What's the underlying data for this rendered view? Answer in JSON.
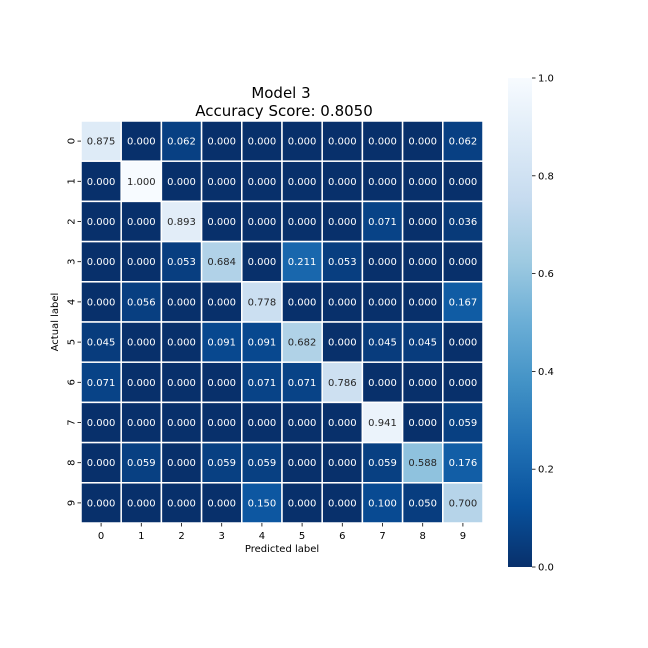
{
  "chart_data": {
    "type": "heatmap",
    "title": "Model 3",
    "subtitle": "Accuracy Score: 0.8050",
    "xlabel": "Predicted label",
    "ylabel": "Actual label",
    "x_ticks": [
      "0",
      "1",
      "2",
      "3",
      "4",
      "5",
      "6",
      "7",
      "8",
      "9"
    ],
    "y_ticks": [
      "0",
      "1",
      "2",
      "3",
      "4",
      "5",
      "6",
      "7",
      "8",
      "9"
    ],
    "values": [
      [
        0.875,
        0.0,
        0.062,
        0.0,
        0.0,
        0.0,
        0.0,
        0.0,
        0.0,
        0.062
      ],
      [
        0.0,
        1.0,
        0.0,
        0.0,
        0.0,
        0.0,
        0.0,
        0.0,
        0.0,
        0.0
      ],
      [
        0.0,
        0.0,
        0.893,
        0.0,
        0.0,
        0.0,
        0.0,
        0.071,
        0.0,
        0.036
      ],
      [
        0.0,
        0.0,
        0.053,
        0.684,
        0.0,
        0.211,
        0.053,
        0.0,
        0.0,
        0.0
      ],
      [
        0.0,
        0.056,
        0.0,
        0.0,
        0.778,
        0.0,
        0.0,
        0.0,
        0.0,
        0.167
      ],
      [
        0.045,
        0.0,
        0.0,
        0.091,
        0.091,
        0.682,
        0.0,
        0.045,
        0.045,
        0.0
      ],
      [
        0.071,
        0.0,
        0.0,
        0.0,
        0.071,
        0.071,
        0.786,
        0.0,
        0.0,
        0.0
      ],
      [
        0.0,
        0.0,
        0.0,
        0.0,
        0.0,
        0.0,
        0.0,
        0.941,
        0.0,
        0.059
      ],
      [
        0.0,
        0.059,
        0.0,
        0.059,
        0.059,
        0.0,
        0.0,
        0.059,
        0.588,
        0.176
      ],
      [
        0.0,
        0.0,
        0.0,
        0.0,
        0.15,
        0.0,
        0.0,
        0.1,
        0.05,
        0.7
      ]
    ],
    "value_format": "3 decimals",
    "colormap": "Blues_r",
    "colormap_stops": [
      "#08306b",
      "#08519c",
      "#2171b5",
      "#4292c6",
      "#6baed6",
      "#9ecae1",
      "#c6dbef",
      "#deebf7",
      "#f7fbff"
    ],
    "colorbar": {
      "range": [
        0.0,
        1.0
      ],
      "ticks": [
        "0.0",
        "0.2",
        "0.4",
        "0.6",
        "0.8",
        "1.0"
      ]
    },
    "cell_border_color": "#ffffff",
    "grid": false
  }
}
